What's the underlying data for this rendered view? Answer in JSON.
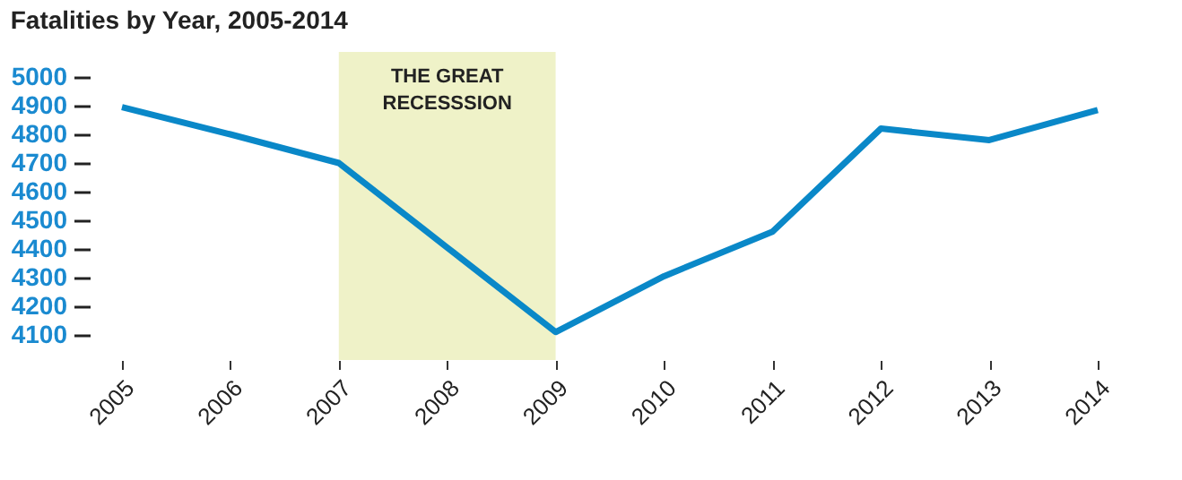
{
  "chart_data": {
    "type": "line",
    "title": "Fatalities by Year, 2005-2014",
    "x": [
      2005,
      2006,
      2007,
      2008,
      2009,
      2010,
      2011,
      2012,
      2013,
      2014
    ],
    "series": [
      {
        "color": "#0a88c8",
        "values": [
          4895,
          4800,
          4700,
          4405,
          4110,
          4305,
          4460,
          4820,
          4780,
          4885
        ]
      }
    ],
    "xlim": [
      2005,
      2014
    ],
    "xticks": [
      2005,
      2006,
      2007,
      2008,
      2009,
      2010,
      2011,
      2012,
      2013,
      2014
    ],
    "ylim": [
      4100,
      5000
    ],
    "yticks": [
      4100,
      4200,
      4300,
      4400,
      4500,
      4600,
      4700,
      4800,
      4900,
      5000
    ],
    "bands": [
      {
        "axis": "x",
        "from": 2007,
        "to": 2009,
        "label": "THE GREAT\nRECESSSION",
        "color": "#eff2c8"
      }
    ],
    "grid": false,
    "marker": "none",
    "line_style": "solid"
  }
}
